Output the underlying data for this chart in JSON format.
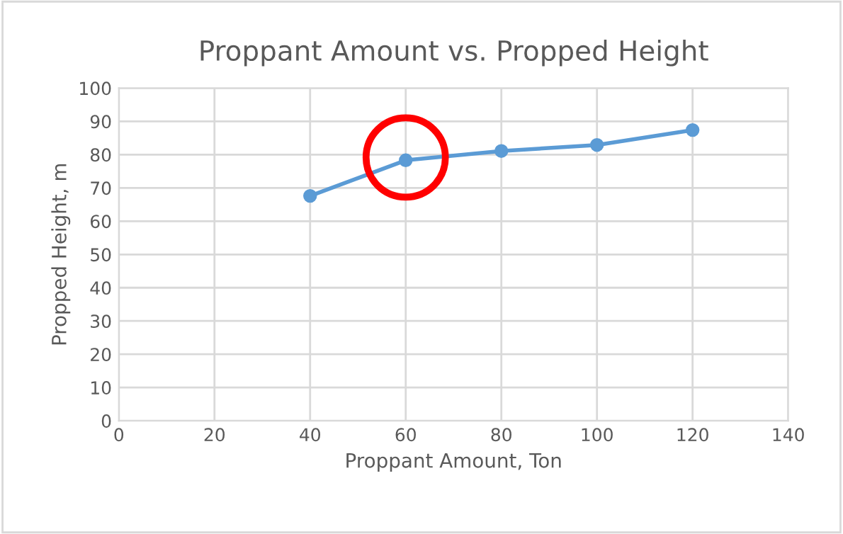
{
  "chart_data": {
    "type": "line",
    "title": "Proppant Amount vs. Propped Height",
    "xlabel": "Proppant Amount, Ton",
    "ylabel": "Propped Height, m",
    "x": [
      40,
      60,
      80,
      100,
      120
    ],
    "series": [
      {
        "color": "#5b9bd5",
        "values": [
          67.6,
          78.3,
          81.1,
          82.9,
          87.4
        ]
      }
    ],
    "marker": "circle",
    "line_style": "solid",
    "xlim": [
      0,
      140
    ],
    "xticks": [
      0,
      20,
      40,
      60,
      80,
      100,
      120,
      140
    ],
    "ylim": [
      0,
      100
    ],
    "yticks": [
      0,
      10,
      20,
      30,
      40,
      50,
      60,
      70,
      80,
      90,
      100
    ],
    "grid": true,
    "legend": false
  }
}
